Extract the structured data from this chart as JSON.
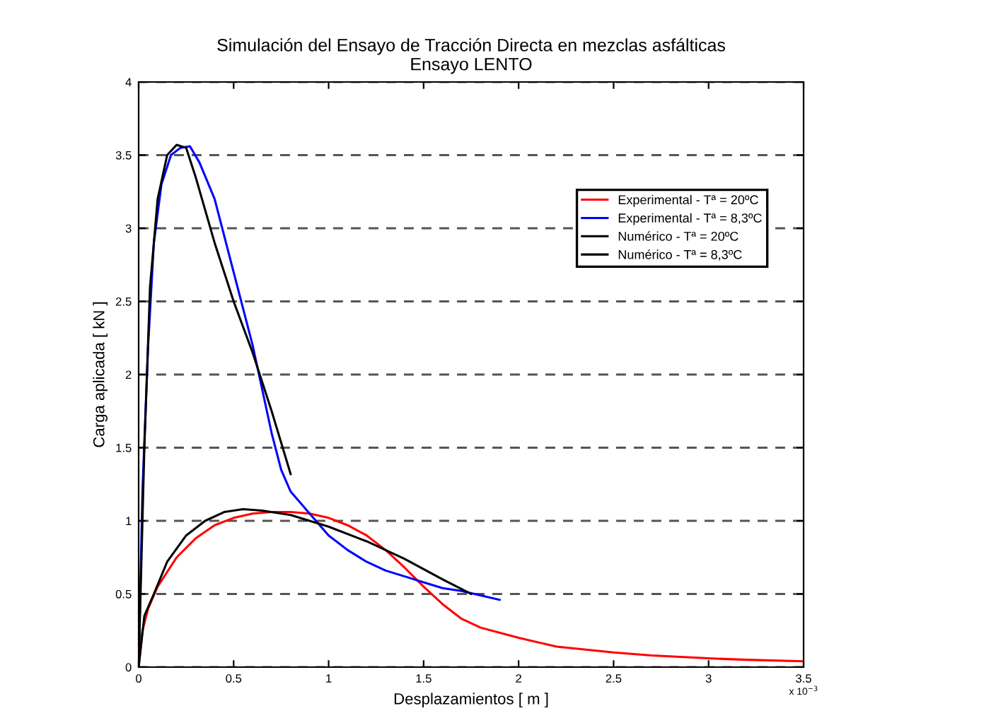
{
  "chart_data": {
    "type": "line",
    "title": "Simulación del Ensayo de Tracción Directa en mezclas asfálticas\nEnsayo LENTO",
    "xlabel": "Desplazamientos [ m ]",
    "ylabel": "Carga aplicada [ kN ]",
    "annotations": [
      "x 10$^{−3}$"
    ],
    "xlim": [
      0,
      3.5
    ],
    "xticks": [
      0,
      0.5,
      1,
      1.5,
      2,
      2.5,
      3,
      3.5
    ],
    "ylim": [
      0,
      4
    ],
    "yticks": [
      0,
      0.5,
      1,
      1.5,
      2,
      2.5,
      3,
      3.5,
      4
    ],
    "grid": "y",
    "legend": "center right",
    "line_style": "solid",
    "marker": "none",
    "series": [
      {
        "name": "Experimental - Tª = 20ºC",
        "color": "#ff0000",
        "x": [
          0,
          0.02,
          0.05,
          0.1,
          0.2,
          0.3,
          0.4,
          0.5,
          0.6,
          0.7,
          0.8,
          0.9,
          1.0,
          1.1,
          1.2,
          1.3,
          1.4,
          1.5,
          1.6,
          1.7,
          1.8,
          2.0,
          2.2,
          2.5,
          2.7,
          3.0,
          3.2,
          3.5
        ],
        "values": [
          0,
          0.25,
          0.4,
          0.55,
          0.75,
          0.88,
          0.97,
          1.02,
          1.05,
          1.06,
          1.06,
          1.05,
          1.02,
          0.97,
          0.9,
          0.8,
          0.68,
          0.55,
          0.43,
          0.33,
          0.27,
          0.2,
          0.14,
          0.1,
          0.08,
          0.06,
          0.05,
          0.04
        ]
      },
      {
        "name": "Experimental - Tª = 8,3ºC",
        "color": "#0000ff",
        "x": [
          0,
          0.02,
          0.05,
          0.08,
          0.12,
          0.17,
          0.22,
          0.27,
          0.32,
          0.4,
          0.5,
          0.6,
          0.65,
          0.7,
          0.75,
          0.8,
          0.9,
          1.0,
          1.1,
          1.2,
          1.3,
          1.4,
          1.5,
          1.6,
          1.7,
          1.8,
          1.9
        ],
        "values": [
          0,
          1.2,
          2.2,
          2.9,
          3.3,
          3.5,
          3.55,
          3.56,
          3.45,
          3.2,
          2.7,
          2.2,
          1.9,
          1.6,
          1.35,
          1.2,
          1.05,
          0.9,
          0.8,
          0.72,
          0.66,
          0.62,
          0.58,
          0.54,
          0.52,
          0.49,
          0.46
        ]
      },
      {
        "name": "Numérico - Tª = 20ºC",
        "color": "#000000",
        "x": [
          0,
          0.03,
          0.08,
          0.15,
          0.25,
          0.35,
          0.45,
          0.55,
          0.65,
          0.8,
          1.0,
          1.2,
          1.4,
          1.6,
          1.75
        ],
        "values": [
          0,
          0.35,
          0.5,
          0.72,
          0.9,
          1.0,
          1.06,
          1.08,
          1.07,
          1.04,
          0.96,
          0.86,
          0.74,
          0.6,
          0.5
        ]
      },
      {
        "name": "Numérico - Tª = 8,3ºC",
        "color": "#000000",
        "x": [
          0,
          0.03,
          0.06,
          0.1,
          0.15,
          0.2,
          0.25,
          0.3,
          0.4,
          0.5,
          0.6,
          0.7,
          0.8
        ],
        "values": [
          0,
          1.5,
          2.6,
          3.2,
          3.5,
          3.57,
          3.55,
          3.35,
          2.9,
          2.5,
          2.15,
          1.75,
          1.32
        ]
      }
    ]
  }
}
